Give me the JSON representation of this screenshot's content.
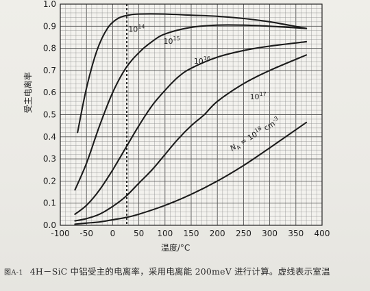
{
  "chart_data": {
    "type": "line",
    "xlabel": "温度/°C",
    "ylabel": "受主电离率",
    "xlim": [
      -100,
      400
    ],
    "ylim": [
      0.0,
      1.0
    ],
    "x_ticks": [
      -100,
      -50,
      0,
      50,
      100,
      150,
      200,
      250,
      300,
      350,
      400
    ],
    "y_ticks": [
      0.0,
      0.1,
      0.2,
      0.3,
      0.4,
      0.5,
      0.6,
      0.7,
      0.8,
      0.9,
      1.0
    ],
    "grid": true,
    "room_temperature_line_x": 27,
    "series": [
      {
        "name": "10^14",
        "label_base": "10",
        "label_exp": "14",
        "x": [
          -67,
          -50,
          -30,
          -10,
          10,
          30,
          50,
          100,
          150,
          200,
          250,
          300,
          370
        ],
        "y": [
          0.42,
          0.62,
          0.79,
          0.89,
          0.935,
          0.95,
          0.955,
          0.955,
          0.95,
          0.945,
          0.935,
          0.92,
          0.89
        ]
      },
      {
        "name": "10^15",
        "label_base": "10",
        "label_exp": "15",
        "x": [
          -72,
          -50,
          -25,
          0,
          25,
          50,
          75,
          100,
          150,
          200,
          250,
          300,
          370
        ],
        "y": [
          0.16,
          0.28,
          0.45,
          0.6,
          0.71,
          0.78,
          0.83,
          0.865,
          0.895,
          0.905,
          0.905,
          0.9,
          0.89
        ]
      },
      {
        "name": "10^16",
        "label_base": "10",
        "label_exp": "16",
        "x": [
          -72,
          -50,
          -25,
          0,
          25,
          50,
          75,
          100,
          125,
          150,
          200,
          250,
          300,
          370
        ],
        "y": [
          0.05,
          0.09,
          0.16,
          0.25,
          0.35,
          0.45,
          0.54,
          0.61,
          0.67,
          0.71,
          0.76,
          0.79,
          0.81,
          0.83
        ]
      },
      {
        "name": "10^17",
        "label_base": "10",
        "label_exp": "17",
        "x": [
          -72,
          -50,
          -25,
          0,
          25,
          50,
          75,
          100,
          125,
          150,
          175,
          200,
          250,
          300,
          370
        ],
        "y": [
          0.02,
          0.03,
          0.05,
          0.085,
          0.13,
          0.19,
          0.25,
          0.32,
          0.39,
          0.45,
          0.5,
          0.56,
          0.64,
          0.7,
          0.77
        ]
      },
      {
        "name": "N_A = 10^18 cm^-3",
        "label_base": "10",
        "label_exp": "18",
        "x": [
          -72,
          -50,
          -25,
          0,
          25,
          50,
          100,
          150,
          200,
          250,
          300,
          370
        ],
        "y": [
          0.005,
          0.01,
          0.015,
          0.025,
          0.035,
          0.05,
          0.09,
          0.14,
          0.2,
          0.27,
          0.35,
          0.465
        ]
      }
    ]
  },
  "labels": {
    "series_prefix": "N",
    "series_prefix_sub": "A",
    "series_eq": " = ",
    "series_unit": " cm",
    "series_unit_exp": "-3"
  },
  "caption": {
    "figure_no": "图A-1",
    "text": "4H－SiC 中铝受主的电离率，采用电离能 200meV 进行计算。虚线表示室温"
  }
}
